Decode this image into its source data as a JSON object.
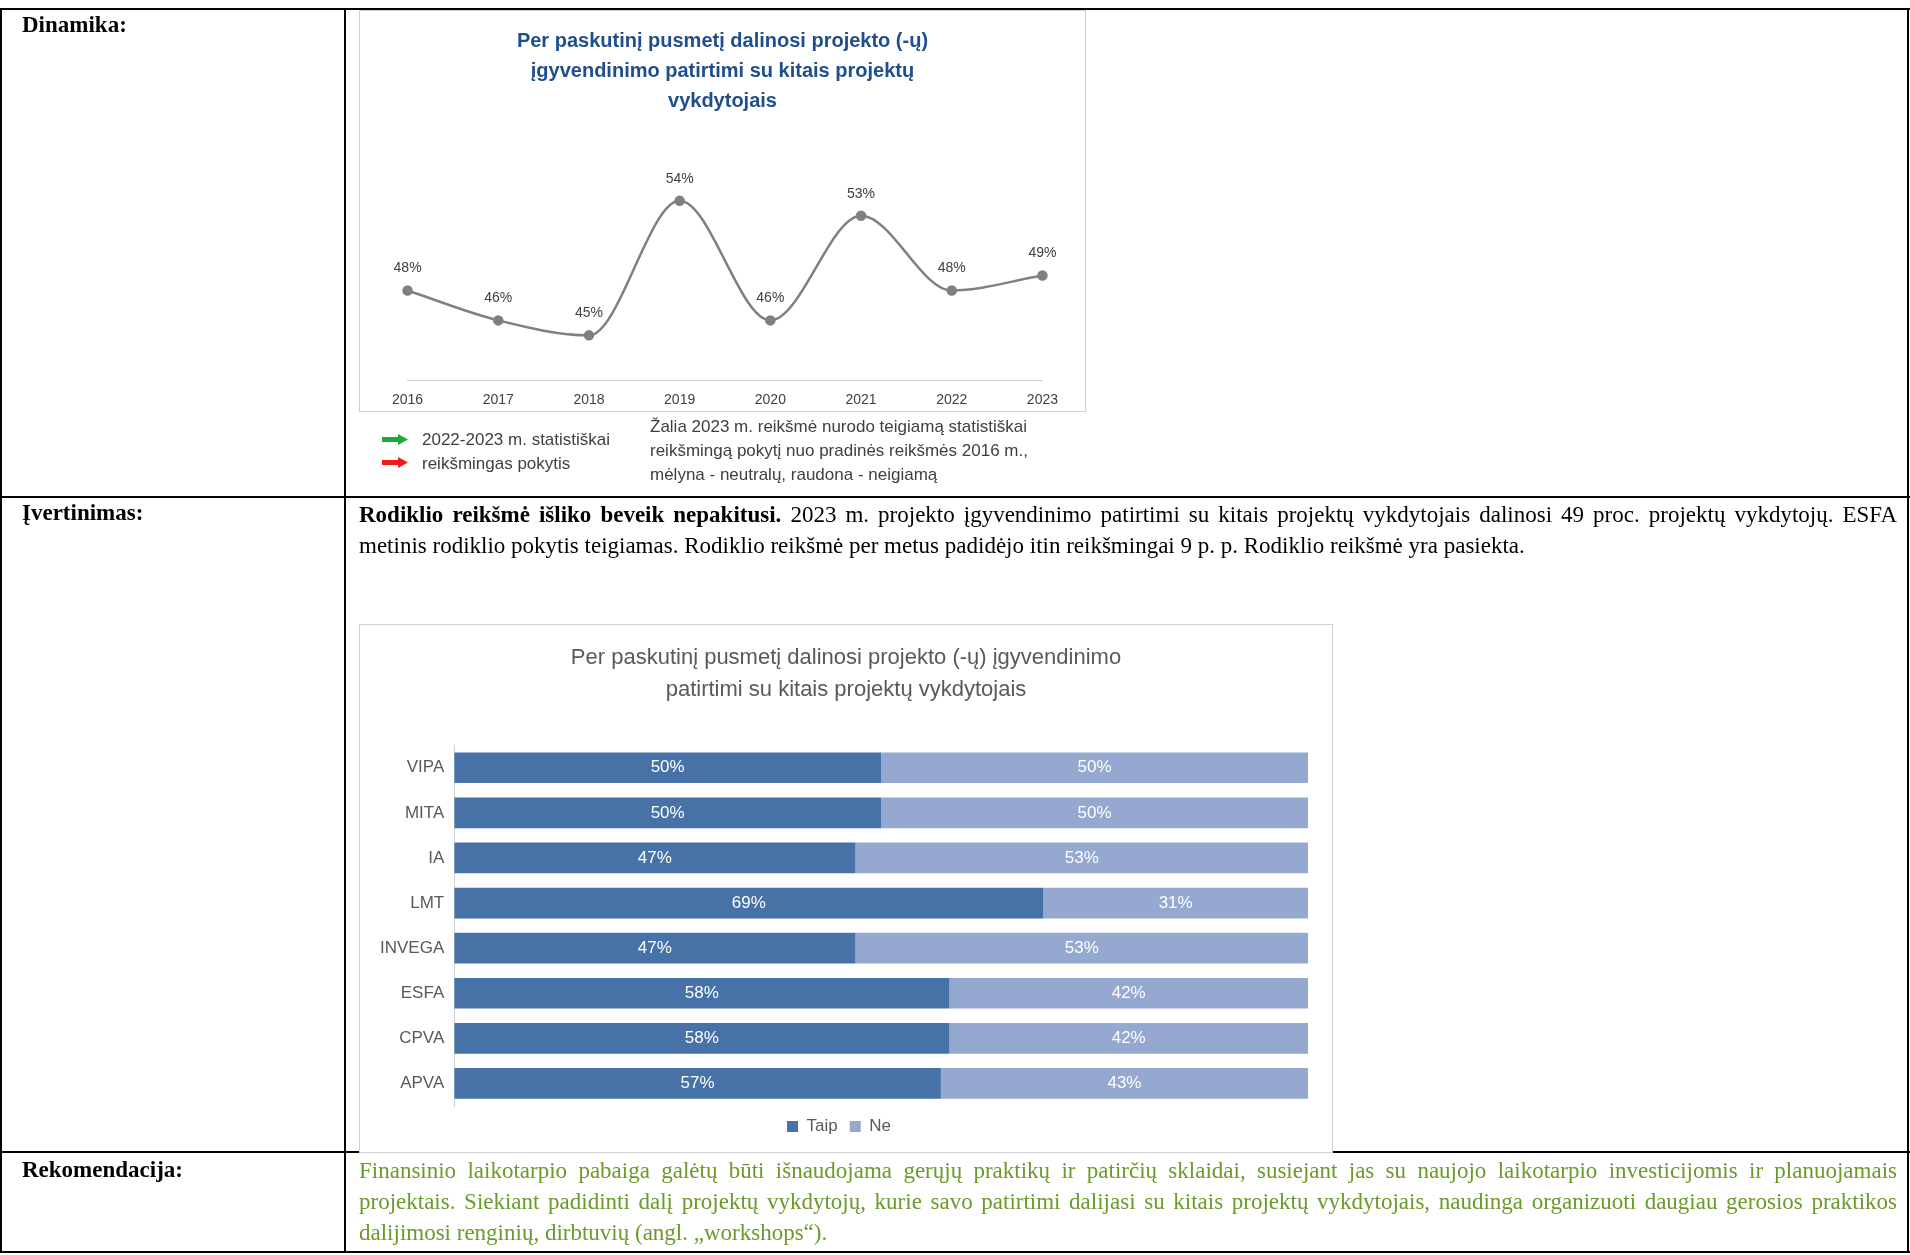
{
  "chart_data": [
    {
      "type": "line",
      "title": "Per paskutinį pusmetį dalinosi projekto (-ų) įgyvendinimo patirtimi su kitais projektų vykdytojais",
      "categories": [
        "2016",
        "2017",
        "2018",
        "2019",
        "2020",
        "2021",
        "2022",
        "2023"
      ],
      "series": [
        {
          "color": "#808080",
          "values": [
            48,
            46,
            45,
            54,
            46,
            53,
            48,
            49
          ],
          "value_labels": [
            "48%",
            "46%",
            "45%",
            "54%",
            "46%",
            "53%",
            "48%",
            "49%"
          ]
        }
      ],
      "marker": "circle",
      "grid": false,
      "legend": false,
      "tick_labels": "x",
      "annotations": [
        "Dinamika:",
        "2022-2023 m. statistiškai reikšmingas pokytis",
        "Žalia 2023 m. reikšmė nurodo teigiamą statistiškai reikšmingą pokytį nuo pradinės reikšmės 2016 m., mėlyna - neutralų, raudona - neigiamą"
      ]
    },
    {
      "type": "bar",
      "orientation": "horizontal",
      "stacked": true,
      "title": "Per paskutinį pusmetį dalinosi projekto (-ų) įgyvendinimo patirtimi su kitais projektų vykdytojais",
      "categories": [
        "VIPA",
        "MITA",
        "IA",
        "LMT",
        "INVEGA",
        "ESFA",
        "CPVA",
        "APVA"
      ],
      "series": [
        {
          "name": "Taip",
          "color": "#4672a8",
          "values": [
            50,
            50,
            47,
            69,
            47,
            58,
            58,
            57
          ],
          "value_labels": [
            "50%",
            "50%",
            "47%",
            "69%",
            "47%",
            "58%",
            "58%",
            "57%"
          ]
        },
        {
          "name": "Ne",
          "color": "#94a8d0",
          "values": [
            50,
            50,
            53,
            31,
            53,
            42,
            42,
            43
          ],
          "value_labels": [
            "50%",
            "50%",
            "53%",
            "31%",
            "53%",
            "42%",
            "42%",
            "43%"
          ]
        }
      ],
      "grid": false,
      "legend": "bottom",
      "tick_labels": "y",
      "annotations": [
        "Įvertinimas:",
        "Rodiklio reikšmė išliko beveik nepakitusi.",
        "2023 m. projekto įgyvendinimo patirtimi su kitais projektų vykdytojais dalinosi 49 proc. projektų vykdytojų. ESFA metinis rodiklio pokytis teigiamas. Rodiklio reikšmė per metus padidėjo itin reikšmingai 9 p. p. Rodiklio reikšmė yra pasiekta."
      ]
    },
    {
      "type": "other",
      "annotations": [
        "Rekomendacija:",
        "Finansinio laikotarpio pabaiga galėtų būti išnaudojama gerųjų praktikų ir patirčių sklaidai, susiejant jas su naujojo laikotarpio investicijomis ir planuojamais projektais. Siekiant padidinti dalį projektų vykdytojų, kurie savo patirtimi dalijasi su kitais projektų vykdytojais, naudinga organizuoti daugiau gerosios praktikos dalijimosi renginių, dirbtuvių (angl. „workshops“)."
      ]
    }
  ]
}
